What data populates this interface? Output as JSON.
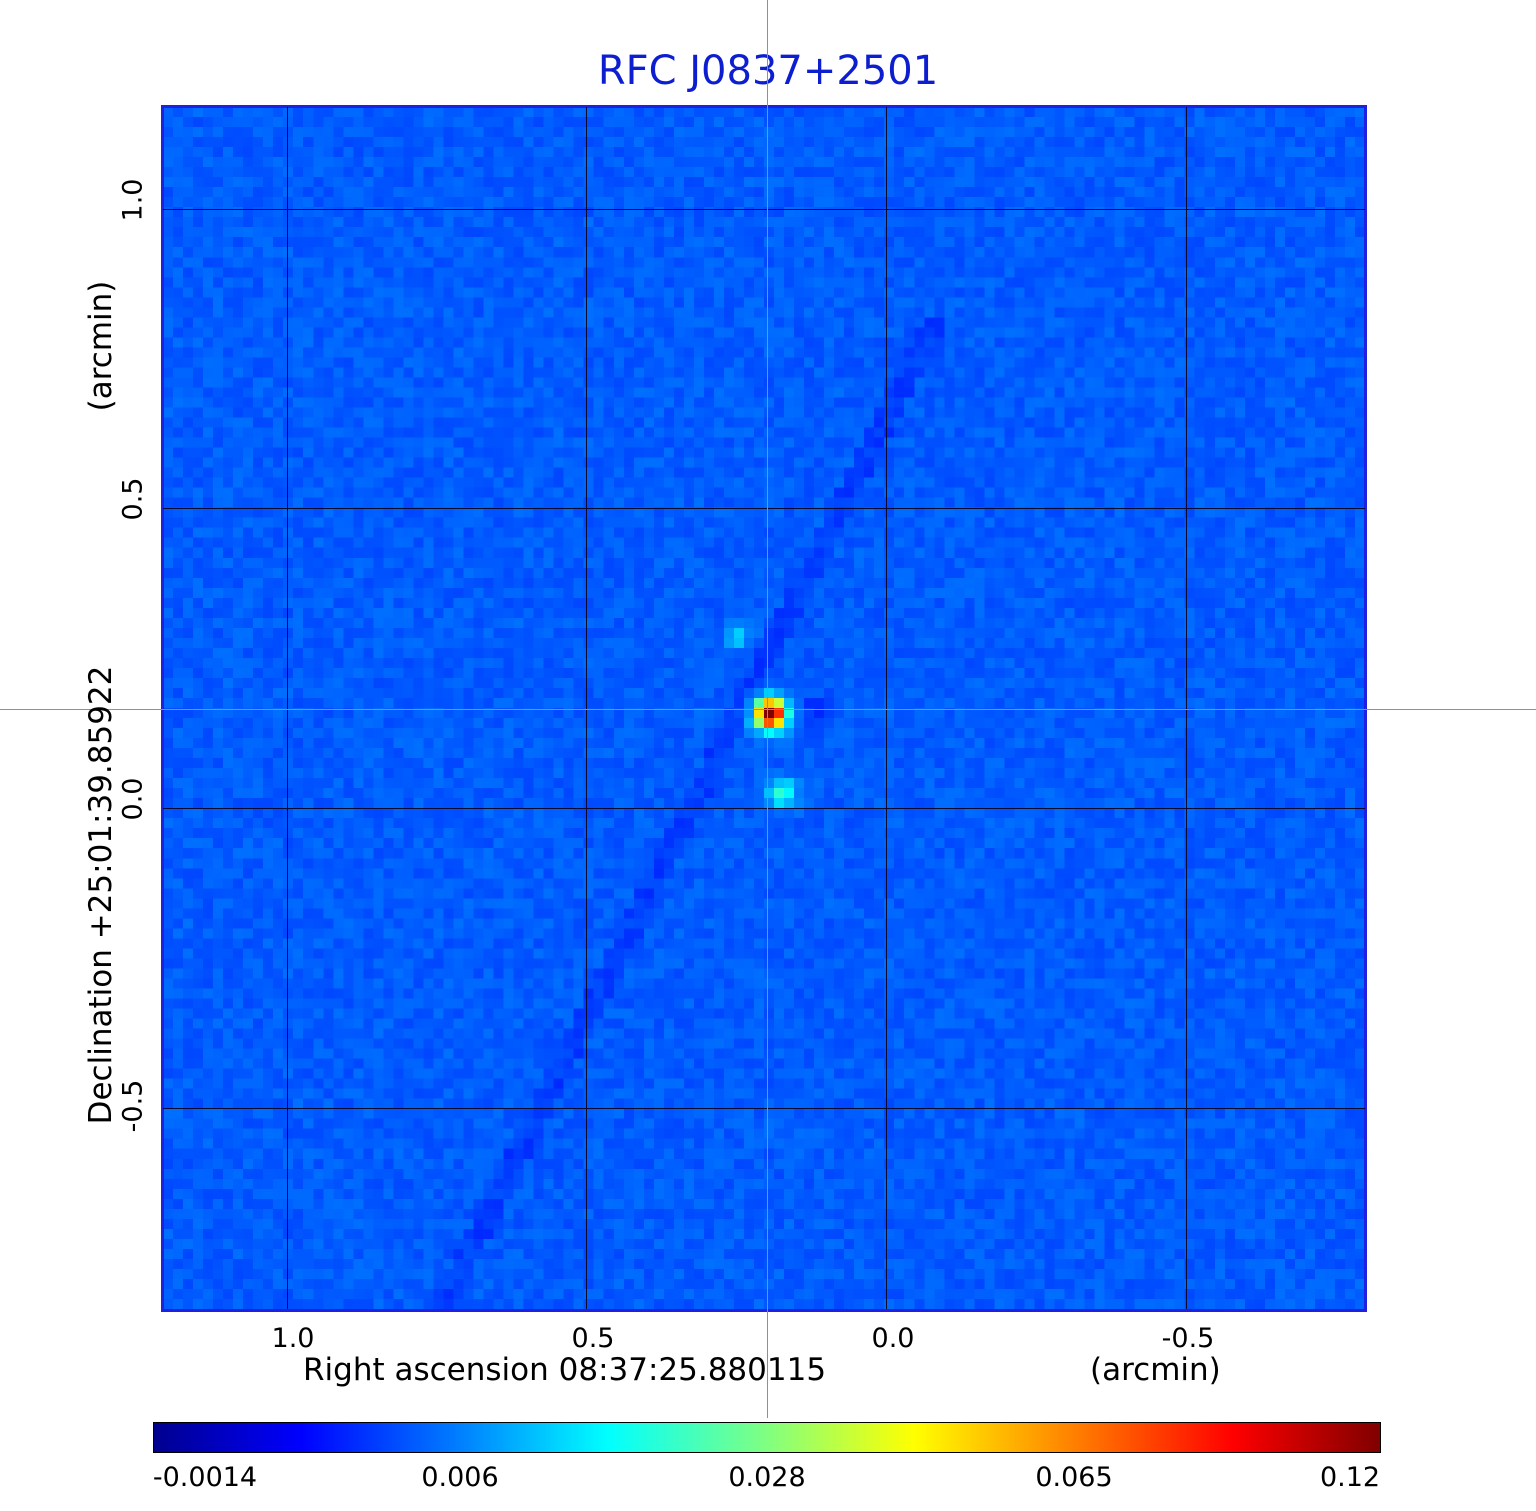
{
  "title": "RFC J0837+2501",
  "x_axis": {
    "label": "Right ascension  08:37:25.880115",
    "unit": "(arcmin)",
    "ticks": [
      "1.0",
      "0.5",
      "0.0",
      "-0.5"
    ]
  },
  "y_axis": {
    "label": "Declination  +25:01:39.85922",
    "unit": "(arcmin)",
    "ticks": [
      "1.0",
      "0.5",
      "0.0",
      "-0.5"
    ]
  },
  "colorbar": {
    "ticks": [
      "-0.0014",
      "0.006",
      "0.028",
      "0.065",
      "0.12"
    ]
  },
  "colors": {
    "title": "#0c1ed0",
    "background_map": "#1f4dff",
    "crosshair": "#22dd22",
    "grid": "#0a0a30"
  },
  "colormap": "jet"
}
